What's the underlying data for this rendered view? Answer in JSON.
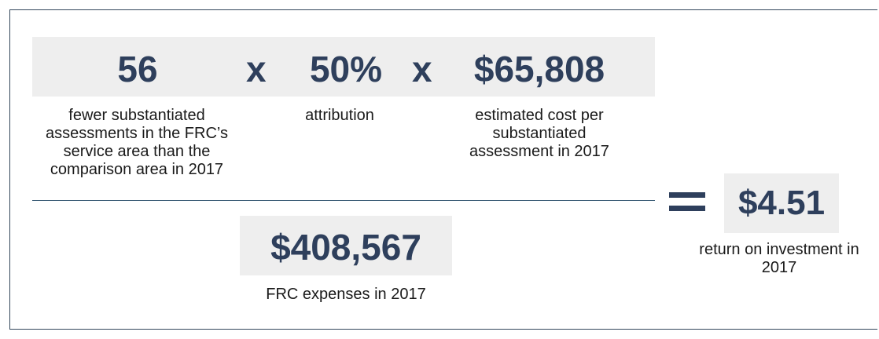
{
  "numerator": {
    "factor1": {
      "value": "56",
      "label": "fewer substantiated assessments in the FRC’s service area than the comparison area in 2017"
    },
    "operator1": "x",
    "factor2": {
      "value": "50%",
      "label": "attribution"
    },
    "operator2": "x",
    "factor3": {
      "value": "$65,808",
      "label": "estimated cost per substantiated assessment in 2017"
    }
  },
  "denominator": {
    "value": "$408,567",
    "label": "FRC expenses in 2017"
  },
  "equals_symbol": "=",
  "result": {
    "value": "$4.51",
    "label": "return on investment in 2017"
  },
  "colors": {
    "accent": "#2e3f5c",
    "box_fill": "#eeeeee",
    "frame": "#33475b",
    "rule": "#3e5f78"
  }
}
